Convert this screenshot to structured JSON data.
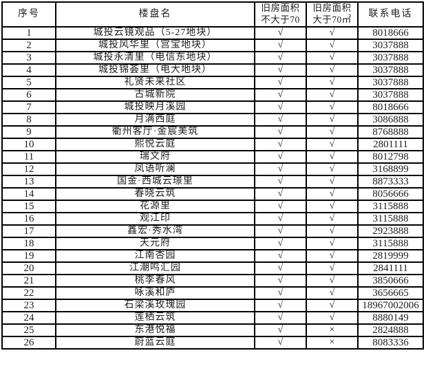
{
  "table": {
    "headers": {
      "no": "序号",
      "name": "楼盘名",
      "le70_line1": "旧房面积",
      "le70_line2": "不大于70",
      "gt70_line1": "旧房面积",
      "gt70_line2": "大于70㎡",
      "phone": "联系电话"
    },
    "marks": {
      "check": "√",
      "cross": "×"
    },
    "rows": [
      {
        "no": "1",
        "name": "城投云镜观品（5-27地块）",
        "le70": "√",
        "gt70": "√",
        "phone": "8018666"
      },
      {
        "no": "2",
        "name": "城投风华里（宫宝地块）",
        "le70": "√",
        "gt70": "√",
        "phone": "3037888"
      },
      {
        "no": "3",
        "name": "城投永清里（电信东地块）",
        "le70": "√",
        "gt70": "√",
        "phone": "3037888"
      },
      {
        "no": "4",
        "name": "城投锦荟里（电大地块）",
        "le70": "√",
        "gt70": "√",
        "phone": "3037888"
      },
      {
        "no": "5",
        "name": "礼贤未来社区",
        "le70": "√",
        "gt70": "√",
        "phone": "3037888"
      },
      {
        "no": "6",
        "name": "古城新院",
        "le70": "√",
        "gt70": "√",
        "phone": "3037888"
      },
      {
        "no": "7",
        "name": "城投映月溪园",
        "le70": "√",
        "gt70": "√",
        "phone": "8018666"
      },
      {
        "no": "8",
        "name": "月满西庭",
        "le70": "√",
        "gt70": "√",
        "phone": "3086888"
      },
      {
        "no": "9",
        "name": "衢州客厅·金宸美筑",
        "le70": "√",
        "gt70": "√",
        "phone": "8768888"
      },
      {
        "no": "10",
        "name": "熙悦云庭",
        "le70": "√",
        "gt70": "√",
        "phone": "2801111"
      },
      {
        "no": "11",
        "name": "瑞文府",
        "le70": "√",
        "gt70": "√",
        "phone": "8012798"
      },
      {
        "no": "12",
        "name": "凤语听澜",
        "le70": "√",
        "gt70": "√",
        "phone": "3168899"
      },
      {
        "no": "13",
        "name": "国金·西城云璟里",
        "le70": "√",
        "gt70": "√",
        "phone": "8873333"
      },
      {
        "no": "14",
        "name": "春晓云筑",
        "le70": "√",
        "gt70": "√",
        "phone": "8056666"
      },
      {
        "no": "15",
        "name": "花源里",
        "le70": "√",
        "gt70": "√",
        "phone": "3115888"
      },
      {
        "no": "16",
        "name": "观江印",
        "le70": "√",
        "gt70": "√",
        "phone": "3115888"
      },
      {
        "no": "17",
        "name": "鑫宏·秀水湾",
        "le70": "√",
        "gt70": "√",
        "phone": "2923888"
      },
      {
        "no": "18",
        "name": "天元府",
        "le70": "√",
        "gt70": "√",
        "phone": "3115888"
      },
      {
        "no": "19",
        "name": "江南杏园",
        "le70": "√",
        "gt70": "√",
        "phone": "2819999"
      },
      {
        "no": "20",
        "name": "江潮鸣汇园",
        "le70": "√",
        "gt70": "√",
        "phone": "2841111"
      },
      {
        "no": "21",
        "name": "桃李春风",
        "le70": "√",
        "gt70": "√",
        "phone": "3850666"
      },
      {
        "no": "22",
        "name": "咏溪和庐",
        "le70": "√",
        "gt70": "√",
        "phone": "3656665"
      },
      {
        "no": "23",
        "name": "石梁溪玫瑰园",
        "le70": "√",
        "gt70": "√",
        "phone": "18967002006"
      },
      {
        "no": "24",
        "name": "莲栖云筑",
        "le70": "√",
        "gt70": "√",
        "phone": "8880149"
      },
      {
        "no": "25",
        "name": "东港悦福",
        "le70": "√",
        "gt70": "×",
        "phone": "2824888"
      },
      {
        "no": "26",
        "name": "蔚蓝云庭",
        "le70": "√",
        "gt70": "×",
        "phone": "8083336"
      }
    ]
  }
}
